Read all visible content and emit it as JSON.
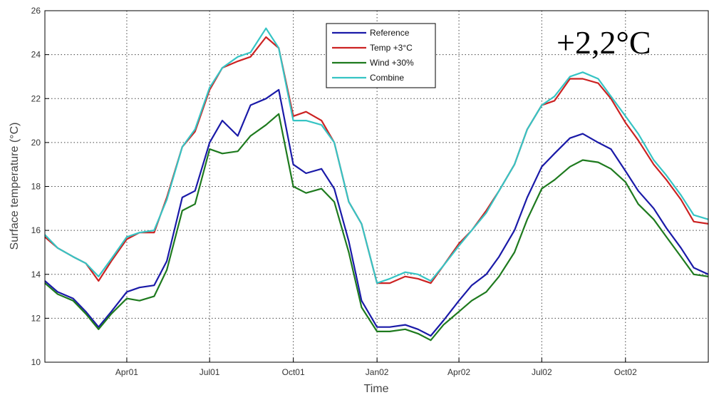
{
  "chart_data": {
    "type": "line",
    "xlabel": "Time",
    "ylabel": "Surface temperature (°C)",
    "x_tick_labels": [
      "Apr01",
      "Jul01",
      "Oct01",
      "Jan02",
      "Apr02",
      "Jul02",
      "Oct02"
    ],
    "x_ticks": [
      "2001-04-01",
      "2001-07-01",
      "2001-10-01",
      "2002-01-01",
      "2002-04-01",
      "2002-07-01",
      "2002-10-01"
    ],
    "xlim": [
      "2001-01-01",
      "2002-12-31"
    ],
    "ylim": [
      10,
      26
    ],
    "y_ticks": [
      10,
      12,
      14,
      16,
      18,
      20,
      22,
      24,
      26
    ],
    "grid": true,
    "legend_position": "top-center",
    "annotation": "+2,2°C",
    "x": [
      "2001-01-01",
      "2001-01-15",
      "2001-02-01",
      "2001-02-15",
      "2001-03-01",
      "2001-03-15",
      "2001-04-01",
      "2001-04-15",
      "2001-05-01",
      "2001-05-15",
      "2001-06-01",
      "2001-06-15",
      "2001-07-01",
      "2001-07-15",
      "2001-08-01",
      "2001-08-15",
      "2001-09-01",
      "2001-09-15",
      "2001-10-01",
      "2001-10-15",
      "2001-11-01",
      "2001-11-15",
      "2001-12-01",
      "2001-12-15",
      "2002-01-01",
      "2002-01-15",
      "2002-02-01",
      "2002-02-15",
      "2002-03-01",
      "2002-03-15",
      "2002-04-01",
      "2002-04-15",
      "2002-05-01",
      "2002-05-15",
      "2002-06-01",
      "2002-06-15",
      "2002-07-01",
      "2002-07-15",
      "2002-08-01",
      "2002-08-15",
      "2002-09-01",
      "2002-09-15",
      "2002-10-01",
      "2002-10-15",
      "2002-11-01",
      "2002-11-15",
      "2002-12-01",
      "2002-12-15",
      "2002-12-31"
    ],
    "series": [
      {
        "name": "Reference",
        "color": "#1a1aa8",
        "values": [
          13.7,
          13.2,
          12.9,
          12.3,
          11.6,
          12.3,
          13.2,
          13.4,
          13.5,
          14.6,
          17.5,
          17.8,
          20.0,
          21.0,
          20.3,
          21.7,
          22.0,
          22.4,
          19.0,
          18.6,
          18.8,
          17.9,
          15.5,
          12.8,
          11.6,
          11.6,
          11.7,
          11.5,
          11.2,
          11.9,
          12.8,
          13.5,
          14.0,
          14.8,
          16.0,
          17.5,
          18.9,
          19.5,
          20.2,
          20.4,
          20.0,
          19.7,
          18.7,
          17.8,
          17.0,
          16.1,
          15.2,
          14.3,
          14.0
        ]
      },
      {
        "name": "Temp +3°C",
        "color": "#cc2222",
        "values": [
          15.7,
          15.2,
          14.8,
          14.5,
          13.7,
          14.6,
          15.6,
          15.9,
          15.9,
          17.5,
          19.8,
          20.5,
          22.4,
          23.4,
          23.7,
          23.9,
          24.8,
          24.3,
          21.2,
          21.4,
          21.0,
          20.0,
          17.3,
          16.3,
          13.6,
          13.6,
          13.9,
          13.8,
          13.6,
          14.4,
          15.4,
          16.0,
          16.9,
          17.8,
          19.0,
          20.6,
          21.7,
          21.9,
          22.9,
          22.9,
          22.7,
          22.0,
          20.9,
          20.1,
          19.0,
          18.3,
          17.4,
          16.4,
          16.3
        ]
      },
      {
        "name": "Wind +30%",
        "color": "#1e7a1e",
        "values": [
          13.6,
          13.1,
          12.8,
          12.2,
          11.5,
          12.2,
          12.9,
          12.8,
          13.0,
          14.2,
          16.9,
          17.2,
          19.7,
          19.5,
          19.6,
          20.3,
          20.8,
          21.3,
          18.0,
          17.7,
          17.9,
          17.3,
          15.0,
          12.5,
          11.4,
          11.4,
          11.5,
          11.3,
          11.0,
          11.7,
          12.3,
          12.8,
          13.2,
          13.9,
          15.0,
          16.5,
          17.9,
          18.3,
          18.9,
          19.2,
          19.1,
          18.8,
          18.2,
          17.2,
          16.5,
          15.7,
          14.8,
          14.0,
          13.9
        ]
      },
      {
        "name": "Combine",
        "color": "#36c4c4",
        "values": [
          15.8,
          15.2,
          14.8,
          14.5,
          13.9,
          14.7,
          15.7,
          15.9,
          16.0,
          17.4,
          19.8,
          20.6,
          22.5,
          23.4,
          23.9,
          24.1,
          25.2,
          24.3,
          21.0,
          21.0,
          20.8,
          20.0,
          17.3,
          16.3,
          13.6,
          13.8,
          14.1,
          14.0,
          13.7,
          14.4,
          15.3,
          16.0,
          16.8,
          17.8,
          19.0,
          20.6,
          21.7,
          22.1,
          23.0,
          23.2,
          22.9,
          22.1,
          21.2,
          20.4,
          19.2,
          18.5,
          17.6,
          16.7,
          16.5
        ]
      }
    ]
  }
}
